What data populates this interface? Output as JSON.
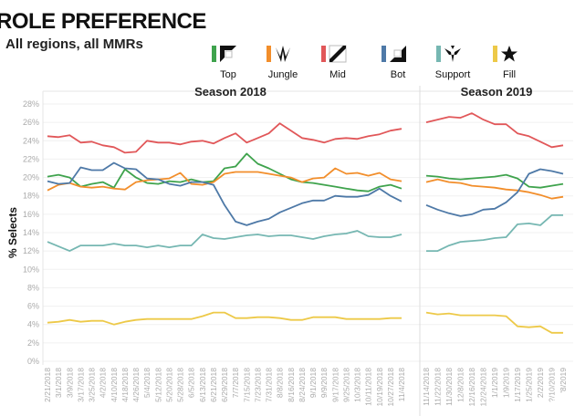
{
  "title": "ROLE PREFERENCE",
  "subtitle": "All regions, all MMRs",
  "chart_data": {
    "type": "line",
    "ylabel": "% Selects",
    "ylim": [
      0,
      28
    ],
    "yticks": [
      "0%",
      "2%",
      "4%",
      "6%",
      "8%",
      "10%",
      "12%",
      "14%",
      "16%",
      "18%",
      "20%",
      "22%",
      "24%",
      "26%",
      "28%"
    ],
    "grid": true,
    "legend_position": "top",
    "panels": [
      {
        "title": "Season 2018",
        "x": [
          "2/21/2018",
          "3/1/2018",
          "3/9/2018",
          "3/17/2018",
          "3/25/2018",
          "4/2/2018",
          "4/10/2018",
          "4/18/2018",
          "4/26/2018",
          "5/4/2018",
          "5/12/2018",
          "5/20/2018",
          "5/28/2018",
          "6/5/2018",
          "6/13/2018",
          "6/21/2018",
          "6/29/2018",
          "7/7/2018",
          "7/15/2018",
          "7/23/2018",
          "7/31/2018",
          "8/8/2018",
          "8/16/2018",
          "8/24/2018",
          "9/1/2018",
          "9/9/2018",
          "9/17/2018",
          "9/25/2018",
          "10/3/2018",
          "10/11/2018",
          "10/19/2018",
          "10/27/2018",
          "11/4/2018"
        ],
        "series": [
          {
            "name": "Top",
            "values": [
              20.1,
              20.3,
              20.0,
              19.0,
              19.3,
              19.5,
              18.9,
              20.9,
              20.0,
              19.4,
              19.3,
              19.6,
              19.5,
              19.8,
              19.5,
              19.6,
              21.0,
              21.2,
              22.6,
              21.5,
              21.0,
              20.4,
              19.8,
              19.5,
              19.4,
              19.2,
              19.0,
              18.8,
              18.6,
              18.5,
              19.0,
              19.2,
              18.8
            ]
          },
          {
            "name": "Jungle",
            "values": [
              18.6,
              19.2,
              19.4,
              19.0,
              18.9,
              19.0,
              18.8,
              18.7,
              19.5,
              19.7,
              19.8,
              19.9,
              20.5,
              19.3,
              19.2,
              19.5,
              20.4,
              20.6,
              20.6,
              20.6,
              20.4,
              20.2,
              20.0,
              19.5,
              19.9,
              20.0,
              21.0,
              20.4,
              20.5,
              20.2,
              20.5,
              19.8,
              19.6
            ]
          },
          {
            "name": "Mid",
            "values": [
              24.5,
              24.4,
              24.6,
              23.8,
              23.9,
              23.5,
              23.3,
              22.7,
              22.8,
              24.0,
              23.8,
              23.8,
              23.6,
              23.9,
              24.0,
              23.7,
              24.3,
              24.8,
              23.8,
              24.3,
              24.8,
              25.9,
              25.1,
              24.3,
              24.1,
              23.8,
              24.2,
              24.3,
              24.2,
              24.5,
              24.7,
              25.1,
              25.3
            ]
          },
          {
            "name": "Bot",
            "values": [
              19.6,
              19.3,
              19.4,
              21.1,
              20.8,
              20.8,
              21.6,
              21.0,
              20.9,
              19.9,
              19.8,
              19.3,
              19.1,
              19.5,
              19.5,
              19.2,
              17.0,
              15.2,
              14.8,
              15.2,
              15.5,
              16.2,
              16.7,
              17.2,
              17.5,
              17.5,
              18.0,
              17.9,
              17.9,
              18.1,
              18.8,
              18.0,
              17.4
            ]
          },
          {
            "name": "Support",
            "values": [
              13.0,
              12.5,
              12.0,
              12.6,
              12.6,
              12.6,
              12.8,
              12.6,
              12.6,
              12.4,
              12.6,
              12.4,
              12.6,
              12.6,
              13.8,
              13.4,
              13.3,
              13.5,
              13.7,
              13.8,
              13.6,
              13.7,
              13.7,
              13.5,
              13.3,
              13.6,
              13.8,
              13.9,
              14.2,
              13.6,
              13.5,
              13.5,
              13.8
            ]
          },
          {
            "name": "Fill",
            "values": [
              4.2,
              4.3,
              4.5,
              4.3,
              4.4,
              4.4,
              4.0,
              4.3,
              4.5,
              4.6,
              4.6,
              4.6,
              4.6,
              4.6,
              4.9,
              5.3,
              5.3,
              4.7,
              4.7,
              4.8,
              4.8,
              4.7,
              4.5,
              4.5,
              4.8,
              4.8,
              4.8,
              4.6,
              4.6,
              4.6,
              4.6,
              4.7,
              4.7
            ]
          }
        ]
      },
      {
        "title": "Season 2019",
        "x": [
          "11/14/2018",
          "11/22/2018",
          "11/30/2018",
          "12/8/2018",
          "12/16/2018",
          "12/24/2018",
          "1/1/2019",
          "1/9/2019",
          "1/17/2019",
          "1/25/2019",
          "2/2/2019",
          "?/10/2019",
          "'8/2019"
        ],
        "series": [
          {
            "name": "Top",
            "values": [
              20.2,
              20.1,
              19.9,
              19.8,
              19.9,
              20.0,
              20.1,
              20.3,
              19.9,
              19.0,
              18.9,
              19.1,
              19.3
            ]
          },
          {
            "name": "Jungle",
            "values": [
              19.5,
              19.8,
              19.5,
              19.4,
              19.1,
              19.0,
              18.9,
              18.7,
              18.6,
              18.4,
              18.1,
              17.7,
              17.9
            ]
          },
          {
            "name": "Mid",
            "values": [
              26.0,
              26.3,
              26.6,
              26.5,
              27.0,
              26.3,
              25.8,
              25.8,
              24.8,
              24.5,
              23.9,
              23.3,
              23.5
            ]
          },
          {
            "name": "Bot",
            "values": [
              17.0,
              16.5,
              16.1,
              15.8,
              16.0,
              16.5,
              16.6,
              17.3,
              18.4,
              20.4,
              20.9,
              20.7,
              20.4
            ]
          },
          {
            "name": "Support",
            "values": [
              12.0,
              12.0,
              12.6,
              13.0,
              13.1,
              13.2,
              13.4,
              13.5,
              14.9,
              15.0,
              14.8,
              15.9,
              15.9
            ]
          },
          {
            "name": "Fill",
            "values": [
              5.3,
              5.1,
              5.2,
              5.0,
              5.0,
              5.0,
              5.0,
              4.9,
              3.8,
              3.7,
              3.8,
              3.1,
              3.1
            ]
          }
        ]
      }
    ],
    "legend": [
      {
        "name": "Top",
        "color": "#3fa34d",
        "icon": "top-lane-icon"
      },
      {
        "name": "Jungle",
        "color": "#f28e2b",
        "icon": "jungle-claw-icon"
      },
      {
        "name": "Mid",
        "color": "#e15759",
        "icon": "mid-lane-icon"
      },
      {
        "name": "Bot",
        "color": "#4e79a7",
        "icon": "bot-lane-icon"
      },
      {
        "name": "Support",
        "color": "#76b7b2",
        "icon": "support-wings-icon"
      },
      {
        "name": "Fill",
        "color": "#edc948",
        "icon": "star-icon"
      }
    ]
  }
}
